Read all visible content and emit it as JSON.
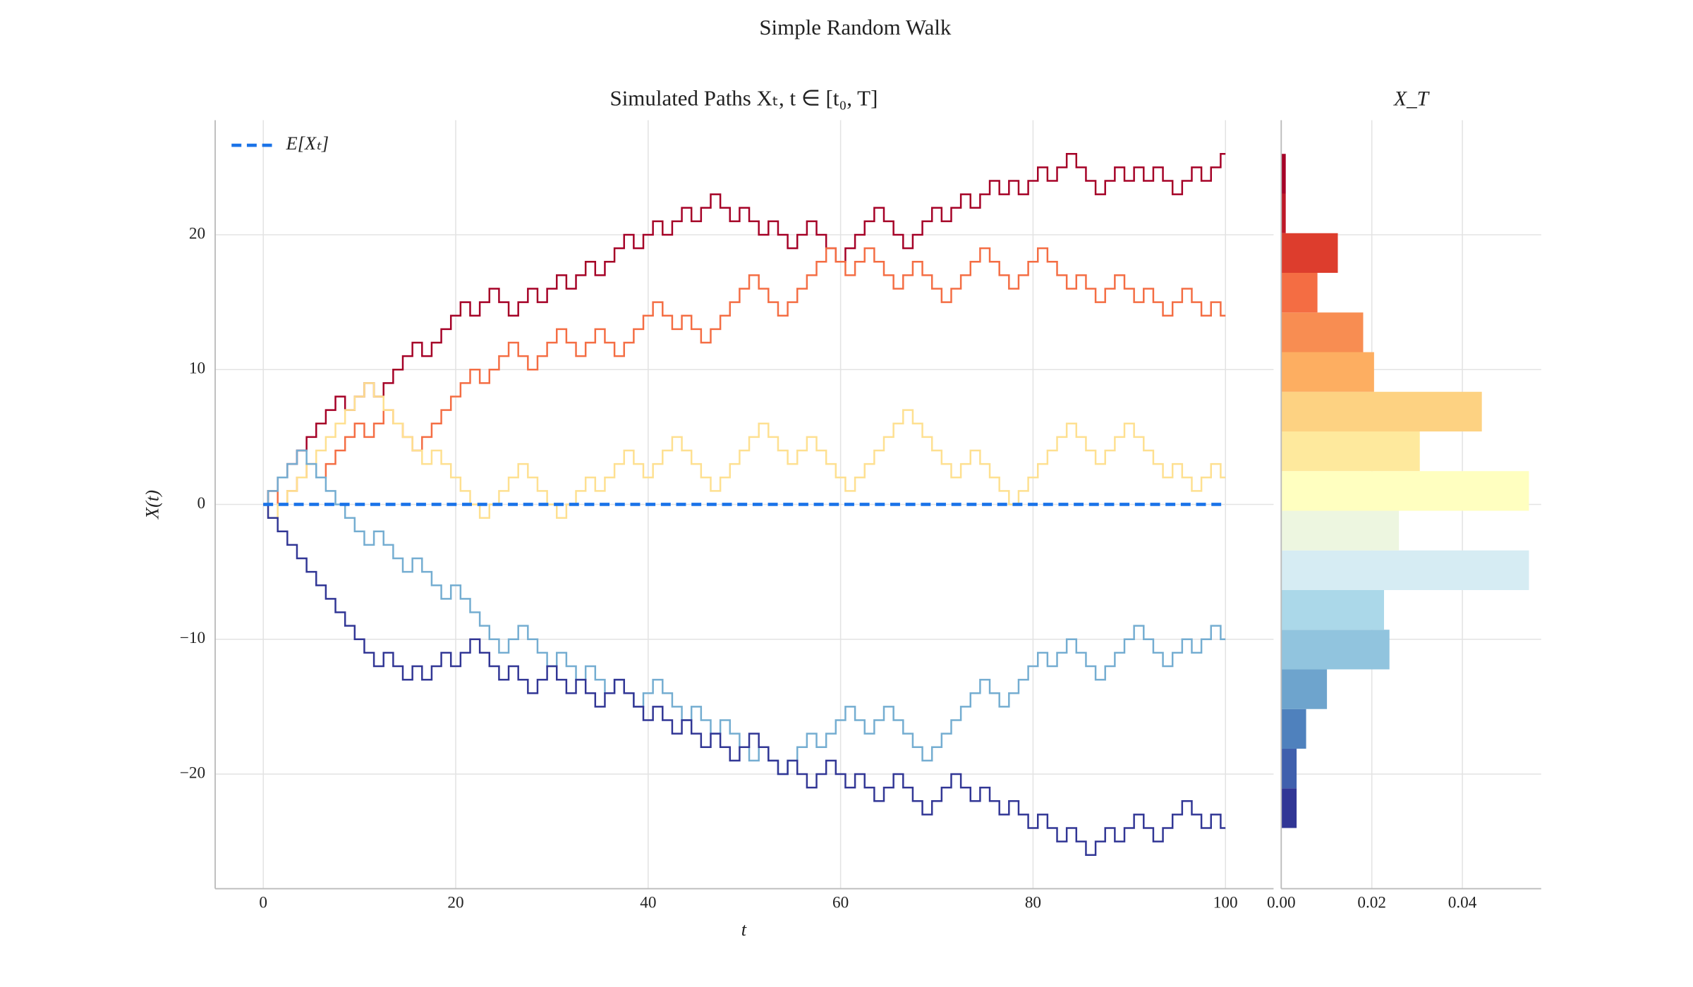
{
  "title": "Simple Random Walk",
  "chart_data": [
    {
      "type": "line",
      "title": "Simulated Paths Xₜ, t ∈ [t₀, T]",
      "xlabel": "t",
      "ylabel": "X(t)",
      "drawstyle": "steps-mid",
      "grid": true,
      "legend": "upper left",
      "xlim": [
        -5,
        105
      ],
      "ylim": [
        -28.5,
        28.5
      ],
      "xticks": [
        0,
        20,
        40,
        60,
        80,
        100
      ],
      "yticks": [
        {
          "value": -20,
          "label": "−20"
        },
        {
          "value": -10,
          "label": "−10"
        },
        0,
        10,
        20
      ],
      "x": [
        0,
        1,
        2,
        3,
        4,
        5,
        6,
        7,
        8,
        9,
        10,
        11,
        12,
        13,
        14,
        15,
        16,
        17,
        18,
        19,
        20,
        21,
        22,
        23,
        24,
        25,
        26,
        27,
        28,
        29,
        30,
        31,
        32,
        33,
        34,
        35,
        36,
        37,
        38,
        39,
        40,
        41,
        42,
        43,
        44,
        45,
        46,
        47,
        48,
        49,
        50,
        51,
        52,
        53,
        54,
        55,
        56,
        57,
        58,
        59,
        60,
        61,
        62,
        63,
        64,
        65,
        66,
        67,
        68,
        69,
        70,
        71,
        72,
        73,
        74,
        75,
        76,
        77,
        78,
        79,
        80,
        81,
        82,
        83,
        84,
        85,
        86,
        87,
        88,
        89,
        90,
        91,
        92,
        93,
        94,
        95,
        96,
        97,
        98,
        99,
        100
      ],
      "series": [
        {
          "color": "#a50026",
          "values": [
            0,
            1,
            2,
            3,
            4,
            5,
            6,
            7,
            8,
            7,
            8,
            9,
            8,
            9,
            10,
            11,
            12,
            11,
            12,
            13,
            14,
            15,
            14,
            15,
            16,
            15,
            14,
            15,
            16,
            15,
            16,
            17,
            16,
            17,
            18,
            17,
            18,
            19,
            20,
            19,
            20,
            21,
            20,
            21,
            22,
            21,
            22,
            23,
            22,
            21,
            22,
            21,
            20,
            21,
            20,
            19,
            20,
            21,
            20,
            19,
            18,
            19,
            20,
            21,
            22,
            21,
            20,
            19,
            20,
            21,
            22,
            21,
            22,
            23,
            22,
            23,
            24,
            23,
            24,
            23,
            24,
            25,
            24,
            25,
            26,
            25,
            24,
            23,
            24,
            25,
            24,
            25,
            24,
            25,
            24,
            23,
            24,
            25,
            24,
            25,
            26
          ]
        },
        {
          "color": "#f46d43",
          "values": [
            0,
            1,
            0,
            1,
            2,
            3,
            2,
            3,
            4,
            5,
            6,
            5,
            6,
            7,
            6,
            5,
            4,
            5,
            6,
            7,
            8,
            9,
            10,
            9,
            10,
            11,
            12,
            11,
            10,
            11,
            12,
            13,
            12,
            11,
            12,
            13,
            12,
            11,
            12,
            13,
            14,
            15,
            14,
            13,
            14,
            13,
            12,
            13,
            14,
            15,
            16,
            17,
            16,
            15,
            14,
            15,
            16,
            17,
            18,
            19,
            18,
            17,
            18,
            19,
            18,
            17,
            16,
            17,
            18,
            17,
            16,
            15,
            16,
            17,
            18,
            19,
            18,
            17,
            16,
            17,
            18,
            19,
            18,
            17,
            16,
            17,
            16,
            15,
            16,
            17,
            16,
            15,
            16,
            15,
            14,
            15,
            16,
            15,
            14,
            15,
            14
          ]
        },
        {
          "color": "#fee090",
          "values": [
            0,
            -1,
            0,
            1,
            2,
            3,
            4,
            5,
            6,
            7,
            8,
            9,
            8,
            7,
            6,
            5,
            4,
            3,
            4,
            3,
            2,
            1,
            0,
            -1,
            0,
            1,
            2,
            3,
            2,
            1,
            0,
            -1,
            0,
            1,
            2,
            1,
            2,
            3,
            4,
            3,
            2,
            3,
            4,
            5,
            4,
            3,
            2,
            1,
            2,
            3,
            4,
            5,
            6,
            5,
            4,
            3,
            4,
            5,
            4,
            3,
            2,
            1,
            2,
            3,
            4,
            5,
            6,
            7,
            6,
            5,
            4,
            3,
            2,
            3,
            4,
            3,
            2,
            1,
            0,
            1,
            2,
            3,
            4,
            5,
            6,
            5,
            4,
            3,
            4,
            5,
            6,
            5,
            4,
            3,
            2,
            3,
            2,
            1,
            2,
            3,
            2
          ]
        },
        {
          "color": "#74add1",
          "values": [
            0,
            1,
            2,
            3,
            4,
            3,
            2,
            1,
            0,
            -1,
            -2,
            -3,
            -2,
            -3,
            -4,
            -5,
            -4,
            -5,
            -6,
            -7,
            -6,
            -7,
            -8,
            -9,
            -10,
            -11,
            -10,
            -9,
            -10,
            -11,
            -12,
            -11,
            -12,
            -13,
            -12,
            -13,
            -14,
            -13,
            -14,
            -15,
            -14,
            -13,
            -14,
            -15,
            -16,
            -15,
            -16,
            -17,
            -16,
            -17,
            -18,
            -19,
            -18,
            -19,
            -20,
            -19,
            -18,
            -17,
            -18,
            -17,
            -16,
            -15,
            -16,
            -17,
            -16,
            -15,
            -16,
            -17,
            -18,
            -19,
            -18,
            -17,
            -16,
            -15,
            -14,
            -13,
            -14,
            -15,
            -14,
            -13,
            -12,
            -11,
            -12,
            -11,
            -10,
            -11,
            -12,
            -13,
            -12,
            -11,
            -10,
            -9,
            -10,
            -11,
            -12,
            -11,
            -10,
            -11,
            -10,
            -9,
            -10
          ]
        },
        {
          "color": "#313695",
          "values": [
            0,
            -1,
            -2,
            -3,
            -4,
            -5,
            -6,
            -7,
            -8,
            -9,
            -10,
            -11,
            -12,
            -11,
            -12,
            -13,
            -12,
            -13,
            -12,
            -11,
            -12,
            -11,
            -10,
            -11,
            -12,
            -13,
            -12,
            -13,
            -14,
            -13,
            -12,
            -13,
            -14,
            -13,
            -14,
            -15,
            -14,
            -13,
            -14,
            -15,
            -16,
            -15,
            -16,
            -17,
            -16,
            -17,
            -18,
            -17,
            -18,
            -19,
            -18,
            -17,
            -18,
            -19,
            -20,
            -19,
            -20,
            -21,
            -20,
            -19,
            -20,
            -21,
            -20,
            -21,
            -22,
            -21,
            -20,
            -21,
            -22,
            -23,
            -22,
            -21,
            -20,
            -21,
            -22,
            -21,
            -22,
            -23,
            -22,
            -23,
            -24,
            -23,
            -24,
            -25,
            -24,
            -25,
            -26,
            -25,
            -24,
            -25,
            -24,
            -23,
            -24,
            -25,
            -24,
            -23,
            -22,
            -23,
            -24,
            -23,
            -24
          ]
        },
        {
          "name": "E[Xₜ]",
          "color": "#1a73e8",
          "linestyle": "dashed",
          "x": [
            0,
            100
          ],
          "values": [
            0,
            0
          ]
        }
      ]
    },
    {
      "type": "histogram",
      "orientation": "horizontal",
      "title": "X_T",
      "bins": [
        -24,
        -21.0588,
        -18.1176,
        -15.1765,
        -12.2353,
        -9.2941,
        -6.3529,
        -3.4118,
        -0.4706,
        2.4706,
        5.4118,
        8.3529,
        11.2941,
        14.2353,
        17.1765,
        20.1176,
        23.0588,
        26
      ],
      "values": [
        0.0034,
        0.0034,
        0.0055,
        0.0101,
        0.0239,
        0.0227,
        0.0547,
        0.026,
        0.0547,
        0.0306,
        0.0443,
        0.0205,
        0.0181,
        0.008,
        0.0125,
        0.001,
        0.001
      ],
      "colors": [
        "#313695",
        "#4060ad",
        "#4f81bd",
        "#6ea4cd",
        "#91c4de",
        "#abd8e9",
        "#d6ecf3",
        "#edf6e0",
        "#ffffc0",
        "#fee99d",
        "#fdd282",
        "#fdae61",
        "#f88d52",
        "#f46d43",
        "#dd3d2d",
        "#be1827",
        "#a50026"
      ],
      "xlim": [
        0,
        0.0574
      ],
      "xticks": [
        {
          "value": 0,
          "label": "0.00"
        },
        {
          "value": 0.02,
          "label": "0.02"
        },
        {
          "value": 0.04,
          "label": "0.04"
        }
      ],
      "grid": true
    }
  ]
}
